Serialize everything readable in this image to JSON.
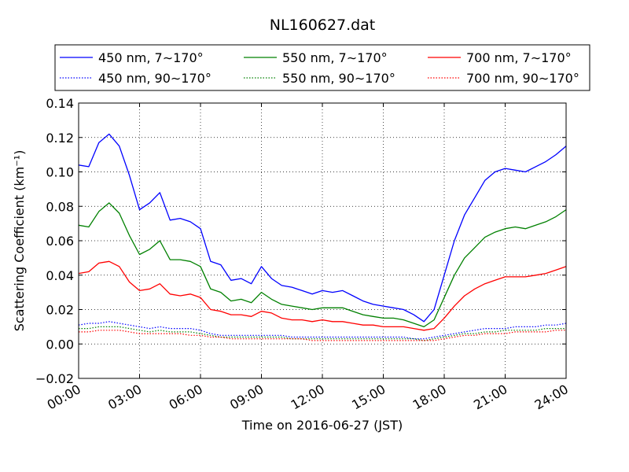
{
  "chart_data": {
    "type": "line",
    "title": "NL160627.dat",
    "xlabel": "Time on 2016-06-27 (JST)",
    "ylabel": "Scattering Coefficient (km⁻¹)",
    "xlim": [
      "00:00",
      "24:00"
    ],
    "ylim": [
      -0.02,
      0.14
    ],
    "x_ticks": [
      "00:00",
      "03:00",
      "06:00",
      "09:00",
      "12:00",
      "15:00",
      "18:00",
      "21:00",
      "24:00"
    ],
    "y_ticks": [
      "−0.02",
      "0.00",
      "0.02",
      "0.04",
      "0.06",
      "0.08",
      "0.10",
      "0.12",
      "0.14"
    ],
    "grid": true,
    "legend_position": "top",
    "x_hours": [
      0,
      0.5,
      1,
      1.5,
      2,
      2.5,
      3,
      3.5,
      4,
      4.5,
      5,
      5.5,
      6,
      6.5,
      7,
      7.5,
      8,
      8.5,
      9,
      9.5,
      10,
      10.5,
      11,
      11.5,
      12,
      12.5,
      13,
      13.5,
      14,
      14.5,
      15,
      15.5,
      16,
      16.5,
      17,
      17.5,
      18,
      18.5,
      19,
      19.5,
      20,
      20.5,
      21,
      21.5,
      22,
      22.5,
      23,
      23.5,
      24
    ],
    "series": [
      {
        "name": "450 nm, 7∼170°",
        "color": "#0000ff",
        "style": "solid",
        "values": [
          0.104,
          0.103,
          0.117,
          0.122,
          0.115,
          0.098,
          0.078,
          0.082,
          0.088,
          0.072,
          0.073,
          0.071,
          0.067,
          0.048,
          0.046,
          0.037,
          0.038,
          0.035,
          0.045,
          0.038,
          0.034,
          0.033,
          0.031,
          0.029,
          0.031,
          0.03,
          0.031,
          0.028,
          0.025,
          0.023,
          0.022,
          0.021,
          0.02,
          0.017,
          0.013,
          0.02,
          0.04,
          0.06,
          0.075,
          0.085,
          0.095,
          0.1,
          0.102,
          0.101,
          0.1,
          0.103,
          0.106,
          0.11,
          0.115
        ]
      },
      {
        "name": "550 nm, 7∼170°",
        "color": "#008000",
        "style": "solid",
        "values": [
          0.069,
          0.068,
          0.077,
          0.082,
          0.076,
          0.063,
          0.052,
          0.055,
          0.06,
          0.049,
          0.049,
          0.048,
          0.045,
          0.032,
          0.03,
          0.025,
          0.026,
          0.024,
          0.03,
          0.026,
          0.023,
          0.022,
          0.021,
          0.02,
          0.021,
          0.021,
          0.021,
          0.019,
          0.017,
          0.016,
          0.015,
          0.015,
          0.014,
          0.012,
          0.01,
          0.014,
          0.027,
          0.04,
          0.05,
          0.056,
          0.062,
          0.065,
          0.067,
          0.068,
          0.067,
          0.069,
          0.071,
          0.074,
          0.078
        ]
      },
      {
        "name": "700 nm, 7∼170°",
        "color": "#ff0000",
        "style": "solid",
        "values": [
          0.041,
          0.042,
          0.047,
          0.048,
          0.045,
          0.036,
          0.031,
          0.032,
          0.035,
          0.029,
          0.028,
          0.029,
          0.027,
          0.02,
          0.019,
          0.017,
          0.017,
          0.016,
          0.019,
          0.018,
          0.015,
          0.014,
          0.014,
          0.013,
          0.014,
          0.013,
          0.013,
          0.012,
          0.011,
          0.011,
          0.01,
          0.01,
          0.01,
          0.009,
          0.008,
          0.009,
          0.015,
          0.022,
          0.028,
          0.032,
          0.035,
          0.037,
          0.039,
          0.039,
          0.039,
          0.04,
          0.041,
          0.043,
          0.045
        ]
      },
      {
        "name": "450 nm, 90∼170°",
        "color": "#0000ff",
        "style": "dotted",
        "values": [
          0.011,
          0.012,
          0.012,
          0.013,
          0.012,
          0.011,
          0.01,
          0.009,
          0.01,
          0.009,
          0.009,
          0.009,
          0.008,
          0.006,
          0.005,
          0.005,
          0.005,
          0.005,
          0.005,
          0.005,
          0.005,
          0.004,
          0.004,
          0.004,
          0.004,
          0.004,
          0.004,
          0.004,
          0.004,
          0.004,
          0.004,
          0.004,
          0.004,
          0.003,
          0.003,
          0.004,
          0.005,
          0.006,
          0.007,
          0.008,
          0.009,
          0.009,
          0.009,
          0.01,
          0.01,
          0.01,
          0.011,
          0.011,
          0.012
        ]
      },
      {
        "name": "550 nm, 90∼170°",
        "color": "#008000",
        "style": "dotted",
        "values": [
          0.009,
          0.009,
          0.01,
          0.01,
          0.01,
          0.009,
          0.008,
          0.007,
          0.008,
          0.007,
          0.007,
          0.007,
          0.006,
          0.005,
          0.004,
          0.004,
          0.004,
          0.004,
          0.004,
          0.004,
          0.004,
          0.003,
          0.003,
          0.003,
          0.003,
          0.003,
          0.003,
          0.003,
          0.003,
          0.003,
          0.003,
          0.003,
          0.003,
          0.003,
          0.002,
          0.003,
          0.004,
          0.005,
          0.006,
          0.006,
          0.007,
          0.007,
          0.008,
          0.008,
          0.008,
          0.008,
          0.009,
          0.009,
          0.009
        ]
      },
      {
        "name": "700 nm, 90∼170°",
        "color": "#ff0000",
        "style": "dotted",
        "values": [
          0.007,
          0.007,
          0.008,
          0.008,
          0.008,
          0.007,
          0.006,
          0.006,
          0.006,
          0.006,
          0.006,
          0.005,
          0.005,
          0.004,
          0.004,
          0.003,
          0.003,
          0.003,
          0.003,
          0.003,
          0.003,
          0.003,
          0.003,
          0.002,
          0.002,
          0.002,
          0.002,
          0.002,
          0.002,
          0.002,
          0.002,
          0.002,
          0.002,
          0.002,
          0.002,
          0.002,
          0.003,
          0.004,
          0.005,
          0.005,
          0.006,
          0.006,
          0.006,
          0.007,
          0.007,
          0.007,
          0.007,
          0.008,
          0.008
        ]
      }
    ]
  }
}
